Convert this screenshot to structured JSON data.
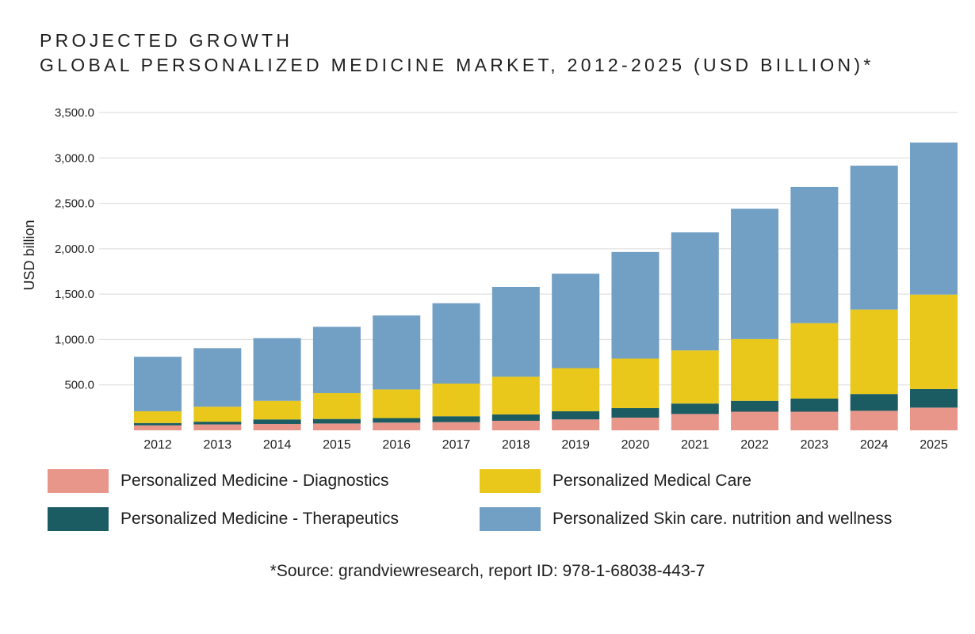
{
  "title_line1": "PROJECTED GROWTH",
  "title_line2": "GLOBAL PERSONALIZED MEDICINE MARKET, 2012-2025 (USD BILLION)*",
  "source": "*Source: grandviewresearch, report ID: 978-1-68038-443-7",
  "chart_data": {
    "type": "bar",
    "stacked": true,
    "title": "GLOBAL PERSONALIZED MEDICINE MARKET, 2012-2025 (USD BILLION)*",
    "xlabel": "",
    "ylabel": "USD billion",
    "ylim": [
      0,
      3500
    ],
    "yticks": [
      500,
      1000,
      1500,
      2000,
      2500,
      3000,
      3500
    ],
    "ytick_labels": [
      "500.0",
      "1,000.0",
      "1,500.0",
      "2,000.0",
      "2,500.0",
      "3,000.0",
      "3,500.0"
    ],
    "grid": true,
    "legend_position": "bottom",
    "categories": [
      "2012",
      "2013",
      "2014",
      "2015",
      "2016",
      "2017",
      "2018",
      "2019",
      "2020",
      "2021",
      "2022",
      "2023",
      "2024",
      "2025"
    ],
    "series": [
      {
        "name": "Personalized Medicine - Diagnostics",
        "color": "#e8958a",
        "values": [
          55,
          65,
          70,
          75,
          85,
          90,
          105,
          120,
          140,
          180,
          205,
          205,
          215,
          250
        ]
      },
      {
        "name": "Personalized Medicine - Therapeutics",
        "color": "#1b5c63",
        "values": [
          25,
          30,
          50,
          50,
          50,
          65,
          70,
          90,
          105,
          115,
          120,
          145,
          185,
          205
        ]
      },
      {
        "name": "Personalized Medical Care",
        "color": "#e9c81b",
        "values": [
          130,
          165,
          205,
          285,
          315,
          360,
          415,
          475,
          545,
          585,
          680,
          830,
          930,
          1040
        ]
      },
      {
        "name": "Personalized Skin care. nutrition and wellness",
        "color": "#729fc4",
        "values": [
          600,
          645,
          690,
          730,
          815,
          885,
          990,
          1040,
          1175,
          1300,
          1435,
          1500,
          1585,
          1675
        ]
      }
    ]
  }
}
